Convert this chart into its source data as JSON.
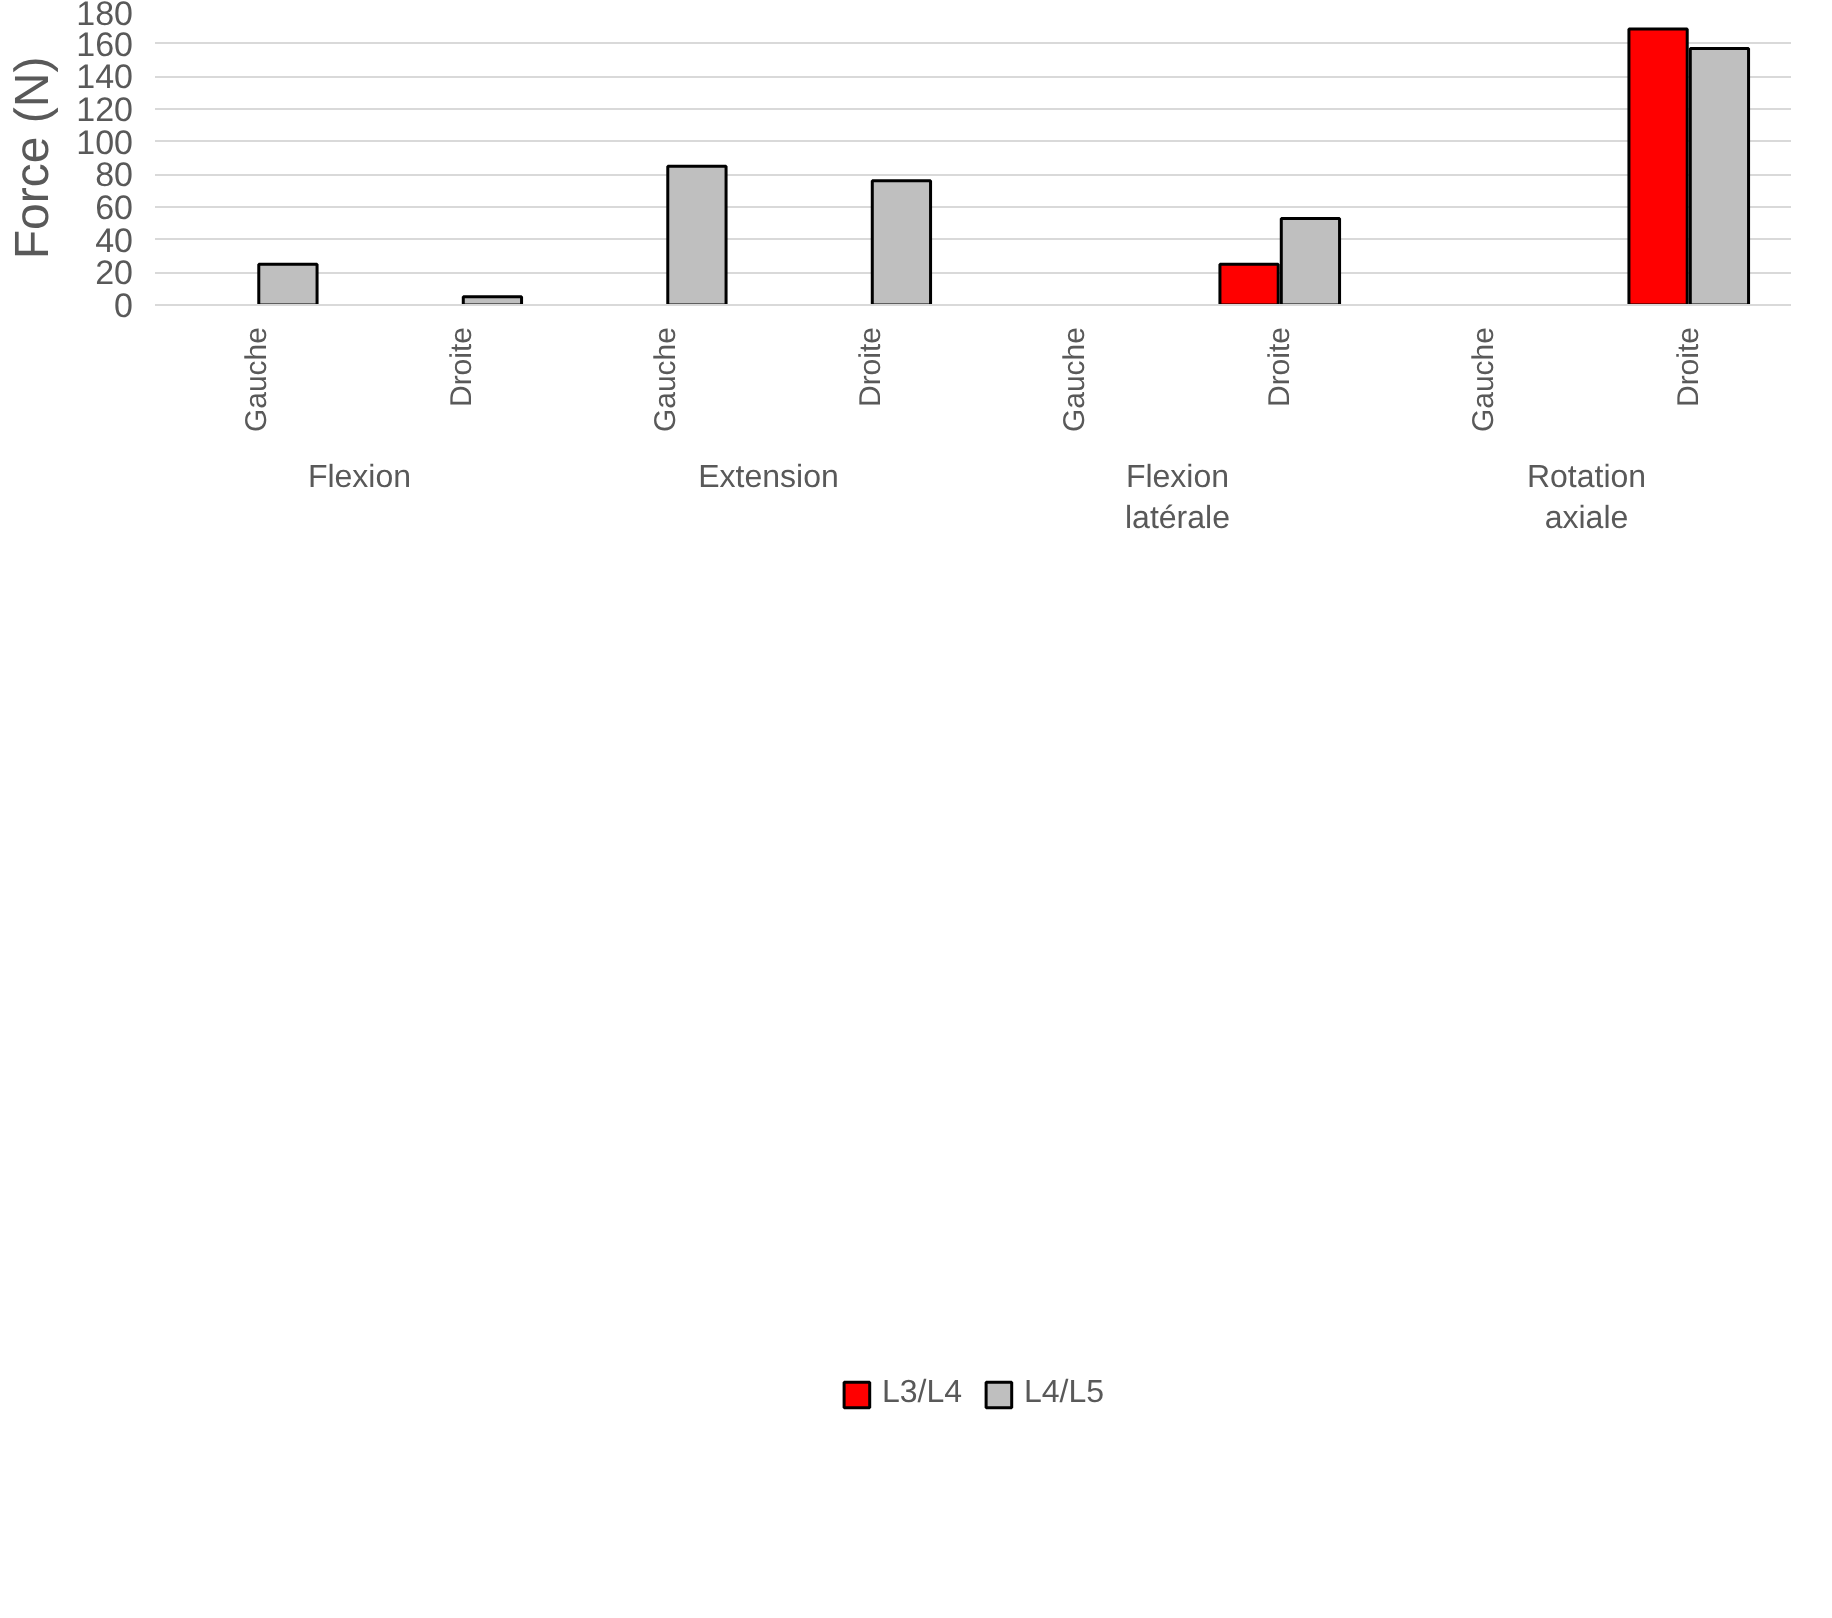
{
  "chart_data": {
    "type": "bar",
    "ylabel": "Force (N)",
    "categories": [
      "Gauche",
      "Droite",
      "Gauche",
      "Droite",
      "Gauche",
      "Droite",
      "Gauche",
      "Droite"
    ],
    "annotations": [
      "Flexion",
      "Extension",
      "Flexion latérale",
      "Rotation axiale"
    ],
    "series": [
      {
        "name": "L3/L4",
        "color": "#ff0000",
        "values": [
          null,
          null,
          null,
          null,
          null,
          25,
          null,
          169
        ]
      },
      {
        "name": "L4/L5",
        "color": "#bfbfbf",
        "values": [
          25,
          5,
          85,
          76,
          null,
          53,
          null,
          157
        ]
      }
    ],
    "ylim": [
      0,
      180
    ],
    "yticks": [
      0,
      20,
      40,
      60,
      80,
      100,
      120,
      140,
      160,
      180
    ],
    "grid": "y",
    "legend": "bottom"
  }
}
